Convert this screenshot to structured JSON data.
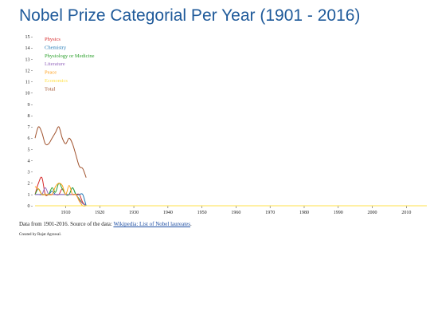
{
  "page": {
    "title": "Nobel Prize Categorial Per Year (1901 - 2016)",
    "note_prefix": "Data from 1901-2016. Source of the data: ",
    "note_link": "Wikipedia: List of Nobel laureates",
    "note_suffix": ".",
    "credit": "Created by Rajat Agrawal."
  },
  "chart_data": {
    "type": "line",
    "title": "Nobel Prize Categorial Per Year (1901 - 2016)",
    "xlabel": "",
    "ylabel": "",
    "xlim": [
      1901,
      2016
    ],
    "ylim": [
      0,
      15
    ],
    "x_ticks": [
      1910,
      1920,
      1930,
      1940,
      1950,
      1960,
      1970,
      1980,
      1990,
      2000,
      2010
    ],
    "y_ticks": [
      0,
      1,
      2,
      3,
      4,
      5,
      6,
      7,
      8,
      9,
      10,
      11,
      12,
      13,
      14,
      15
    ],
    "grid": false,
    "legend_position": "top-left",
    "series": [
      {
        "name": "Physics",
        "color": "#d62728",
        "x": [
          1901,
          1902,
          1903,
          1904,
          1905,
          1906,
          1907,
          1908,
          1909,
          1910,
          1911,
          1912,
          1913,
          1914,
          1915,
          1916
        ],
        "y": [
          1,
          2,
          2.5,
          1,
          1,
          1,
          1,
          1,
          1.5,
          1,
          1,
          1,
          1,
          1,
          0.3,
          0
        ]
      },
      {
        "name": "Chemistry",
        "color": "#1f77b4",
        "x": [
          1901,
          1902,
          1903,
          1904,
          1905,
          1906,
          1907,
          1908,
          1909,
          1910,
          1911,
          1912,
          1913,
          1914,
          1915,
          1916
        ],
        "y": [
          1,
          1,
          1,
          1,
          1,
          1.3,
          1,
          1,
          1,
          1,
          1,
          1.6,
          1,
          1,
          1,
          0
        ]
      },
      {
        "name": "Physiology or Medicine",
        "color": "#2ca02c",
        "x": [
          1901,
          1902,
          1903,
          1904,
          1905,
          1906,
          1907,
          1908,
          1909,
          1910,
          1911,
          1912,
          1913,
          1914,
          1915,
          1916
        ],
        "y": [
          1,
          1.5,
          1,
          1,
          1,
          1.6,
          1.2,
          2,
          1.5,
          1,
          1,
          1.6,
          1,
          0.6,
          0.2,
          0
        ]
      },
      {
        "name": "Literature",
        "color": "#9467bd",
        "x": [
          1901,
          1902,
          1903,
          1904,
          1905,
          1906,
          1907,
          1908,
          1909,
          1910,
          1911,
          1912,
          1913,
          1914,
          1915,
          1916
        ],
        "y": [
          1,
          1,
          1,
          1.6,
          1,
          1,
          1,
          1,
          1,
          1,
          1,
          1,
          1,
          0.5,
          0.2,
          0
        ]
      },
      {
        "name": "Peace",
        "color": "#ff9f1a",
        "x": [
          1901,
          1902,
          1903,
          1904,
          1905,
          1906,
          1907,
          1908,
          1909,
          1910,
          1911,
          1912,
          1913,
          1914,
          1915,
          1916
        ],
        "y": [
          1.7,
          1.5,
          1,
          1,
          1,
          1,
          1.7,
          2,
          1.8,
          1,
          1.8,
          1,
          1,
          0.4,
          0,
          0
        ]
      },
      {
        "name": "Economics",
        "color": "#ffe14a",
        "x": [
          1901,
          2016
        ],
        "y": [
          0,
          0
        ]
      },
      {
        "name": "Total",
        "color": "#a0522d",
        "x": [
          1901,
          1902,
          1903,
          1904,
          1905,
          1906,
          1907,
          1908,
          1909,
          1910,
          1911,
          1912,
          1913,
          1914,
          1915,
          1916
        ],
        "y": [
          6,
          7,
          6.5,
          5.5,
          5.5,
          6,
          6.5,
          7,
          6,
          5.5,
          6,
          5.5,
          4.5,
          3.5,
          3.3,
          2.5
        ]
      }
    ]
  }
}
